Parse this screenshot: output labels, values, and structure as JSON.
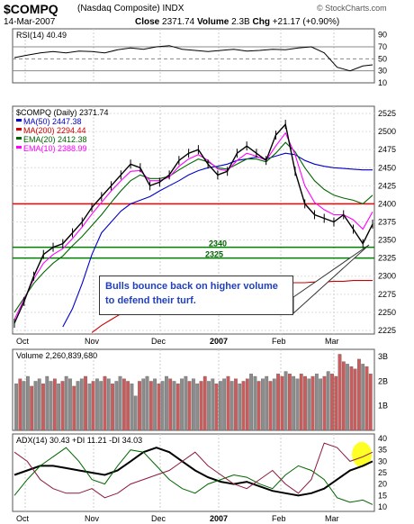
{
  "header": {
    "symbol": "$COMPQ",
    "name": "(Nasdaq Composite) INDX",
    "date": "14-Mar-2007",
    "close_label": "Close",
    "close": "2371.74",
    "volume_label": "Volume",
    "volume": "2.3B",
    "chg_label": "Chg",
    "chg": "+21.17 (+0.90%)",
    "copyright": "© StockCharts.com"
  },
  "colors": {
    "price": "#000000",
    "ma50": "#0000cc",
    "ma200": "#cc0000",
    "ema20": "#006600",
    "ema10": "#ff00ff",
    "hline_red": "#ff0000",
    "hline_green": "#008000",
    "vol_up": "#8c8c8c",
    "vol_down": "#cc5b5b",
    "highlight": "#ffff00",
    "callout_text": "#1f3fbf"
  },
  "chart_data": [
    {
      "type": "line",
      "title": "RSI(14) 40.49",
      "ylim": [
        10,
        100
      ],
      "ticks": [
        "90",
        "70",
        "50",
        "30",
        "10"
      ],
      "x": [
        0,
        4,
        8,
        12,
        16,
        20,
        24,
        28,
        32,
        36,
        40,
        44,
        48,
        52,
        56,
        60,
        64,
        68,
        72,
        76,
        80,
        84,
        88,
        92,
        96,
        100,
        104,
        108,
        111
      ],
      "series": [
        {
          "values": [
            52,
            56,
            60,
            62,
            60,
            63,
            62,
            60,
            65,
            68,
            66,
            70,
            72,
            66,
            64,
            62,
            64,
            66,
            63,
            64,
            66,
            65,
            68,
            70,
            60,
            36,
            30,
            38,
            40
          ]
        }
      ]
    },
    {
      "type": "line",
      "title": "$COMPQ (Daily) 2371.74",
      "ylim": [
        2220,
        2535
      ],
      "yticks": [
        "2525",
        "2500",
        "2475",
        "2450",
        "2425",
        "2400",
        "2375",
        "2350",
        "2325",
        "2300",
        "2275",
        "2250",
        "2225"
      ],
      "xticks": [
        "Oct",
        "Nov",
        "Dec",
        "2007",
        "Feb",
        "Mar"
      ],
      "legend": [
        {
          "label": "MA(50) 2447.38",
          "color": "#0000cc"
        },
        {
          "label": "MA(200) 2294.44",
          "color": "#cc0000"
        },
        {
          "label": "EMA(20) 2412.38",
          "color": "#006600"
        },
        {
          "label": "EMA(10) 2388.99",
          "color": "#ff00ff"
        }
      ],
      "hlines": [
        {
          "value": 2400,
          "color": "#ff0000"
        },
        {
          "value": 2340,
          "label": "2340",
          "color": "#008000"
        },
        {
          "value": 2325,
          "label": "2325",
          "color": "#008000"
        }
      ],
      "x": [
        0,
        3,
        6,
        9,
        12,
        15,
        18,
        21,
        24,
        27,
        30,
        33,
        36,
        39,
        42,
        45,
        48,
        51,
        54,
        57,
        60,
        63,
        66,
        69,
        72,
        75,
        78,
        81,
        84,
        87,
        90,
        93,
        96,
        99,
        102,
        105,
        108,
        111
      ],
      "series": [
        {
          "values": [
            2235,
            2265,
            2300,
            2330,
            2340,
            2345,
            2360,
            2375,
            2395,
            2410,
            2425,
            2440,
            2455,
            2450,
            2425,
            2430,
            2440,
            2460,
            2470,
            2475,
            2455,
            2440,
            2445,
            2470,
            2480,
            2470,
            2460,
            2495,
            2510,
            2445,
            2400,
            2385,
            2380,
            2375,
            2385,
            2365,
            2345,
            2372
          ]
        },
        {
          "values": [
            null,
            null,
            null,
            null,
            null,
            2230,
            2255,
            2290,
            2330,
            2360,
            2375,
            2390,
            2400,
            2405,
            2410,
            2418,
            2425,
            2432,
            2440,
            2446,
            2450,
            2452,
            2455,
            2460,
            2462,
            2465,
            2462,
            2466,
            2470,
            2468,
            2460,
            2455,
            2452,
            2450,
            2449,
            2448,
            2447,
            2447
          ]
        },
        {
          "values": [
            null,
            null,
            null,
            null,
            null,
            null,
            null,
            null,
            2222,
            2232,
            2240,
            2248,
            2255,
            2262,
            2268,
            2272,
            2276,
            2279,
            2281,
            2283,
            2284,
            2285,
            2286,
            2287,
            2288,
            2289,
            2289,
            2290,
            2291,
            2291,
            2291,
            2292,
            2292,
            2293,
            2293,
            2294,
            2294,
            2294
          ]
        },
        {
          "values": [
            2250,
            2270,
            2290,
            2305,
            2318,
            2328,
            2342,
            2355,
            2370,
            2385,
            2402,
            2418,
            2432,
            2440,
            2435,
            2435,
            2438,
            2447,
            2455,
            2462,
            2458,
            2450,
            2448,
            2455,
            2462,
            2462,
            2458,
            2470,
            2485,
            2472,
            2450,
            2432,
            2420,
            2412,
            2408,
            2405,
            2400,
            2412
          ]
        },
        {
          "values": [
            2240,
            2268,
            2296,
            2318,
            2330,
            2338,
            2352,
            2368,
            2386,
            2402,
            2418,
            2432,
            2445,
            2446,
            2432,
            2432,
            2437,
            2452,
            2462,
            2468,
            2460,
            2448,
            2446,
            2460,
            2470,
            2466,
            2460,
            2480,
            2498,
            2468,
            2425,
            2402,
            2392,
            2385,
            2385,
            2378,
            2365,
            2389
          ]
        }
      ]
    },
    {
      "type": "bar",
      "title": "Volume 2,260,839,680",
      "ylim": [
        0,
        3.3
      ],
      "yticks": [
        "3B",
        "2B",
        "1B"
      ],
      "values": [
        1.9,
        2.1,
        2.0,
        2.2,
        1.8,
        2.0,
        2.1,
        1.9,
        2.2,
        2.0,
        2.1,
        1.9,
        2.0,
        2.2,
        2.1,
        1.8,
        2.0,
        2.1,
        2.2,
        1.9,
        2.0,
        2.1,
        2.0,
        2.2,
        2.1,
        1.9,
        2.0,
        2.2,
        2.1,
        2.0,
        1.9,
        1.4,
        2.0,
        2.1,
        2.2,
        2.0,
        2.1,
        1.9,
        2.0,
        2.2,
        2.1,
        2.0,
        1.9,
        2.1,
        2.2,
        2.0,
        2.1,
        1.9,
        2.0,
        2.2,
        2.0,
        2.1,
        1.9,
        2.0,
        2.1,
        2.2,
        2.0,
        2.1,
        1.9,
        2.0,
        2.1,
        2.3,
        2.2,
        2.0,
        2.1,
        2.2,
        2.0,
        2.1,
        2.3,
        2.2,
        2.4,
        2.3,
        2.2,
        2.1,
        2.3,
        2.2,
        2.1,
        2.2,
        2.3,
        2.1,
        2.2,
        2.4,
        2.3,
        2.2,
        3.1,
        2.8,
        2.7,
        2.6,
        2.5,
        2.9,
        2.7,
        2.6,
        2.3
      ],
      "down": [
        0,
        1,
        0,
        0,
        1,
        0,
        0,
        1,
        0,
        0,
        1,
        0,
        1,
        0,
        0,
        1,
        0,
        0,
        1,
        0,
        1,
        0,
        0,
        1,
        0,
        1,
        0,
        0,
        1,
        1,
        0,
        0,
        1,
        0,
        0,
        1,
        0,
        1,
        0,
        0,
        1,
        0,
        1,
        0,
        0,
        1,
        0,
        0,
        1,
        1,
        0,
        0,
        1,
        0,
        0,
        1,
        0,
        1,
        0,
        1,
        1,
        0,
        0,
        1,
        0,
        0,
        1,
        0,
        1,
        1,
        0,
        1,
        0,
        0,
        1,
        1,
        0,
        1,
        0,
        0,
        1,
        0,
        1,
        1,
        1,
        1,
        0,
        1,
        1,
        1,
        0,
        1,
        1
      ]
    },
    {
      "type": "line",
      "title": "ADX(14) 30.43 +DI 11.21 -DI 34.03",
      "ylim": [
        8,
        42
      ],
      "yticks": [
        "40",
        "35",
        "30",
        "25",
        "20",
        "15",
        "10"
      ],
      "x": [
        0,
        4,
        8,
        12,
        16,
        20,
        24,
        28,
        32,
        36,
        40,
        44,
        48,
        52,
        56,
        60,
        64,
        68,
        72,
        76,
        80,
        84,
        88,
        92,
        96,
        100,
        104,
        108,
        111
      ],
      "series": [
        {
          "name": "ADX",
          "color": "#000000",
          "values": [
            24,
            26,
            28,
            28,
            27,
            26,
            25,
            24,
            26,
            30,
            34,
            36,
            34,
            30,
            26,
            23,
            21,
            20,
            21,
            19,
            17,
            16,
            15,
            16,
            18,
            22,
            26,
            28,
            30
          ]
        },
        {
          "name": "+DI",
          "color": "#006600",
          "values": [
            15,
            22,
            28,
            32,
            36,
            30,
            22,
            20,
            28,
            35,
            34,
            28,
            22,
            18,
            16,
            20,
            22,
            24,
            23,
            20,
            18,
            24,
            28,
            26,
            22,
            14,
            12,
            13,
            11
          ]
        },
        {
          "name": "-DI",
          "color": "#8b1a3a",
          "values": [
            34,
            30,
            22,
            18,
            16,
            16,
            18,
            14,
            16,
            20,
            22,
            24,
            26,
            30,
            34,
            28,
            24,
            20,
            18,
            22,
            26,
            20,
            16,
            22,
            38,
            36,
            30,
            32,
            34
          ]
        }
      ]
    }
  ],
  "annotation": {
    "text_line1": "Bulls bounce back on higher volume",
    "text_line2": "to defend their turf."
  }
}
